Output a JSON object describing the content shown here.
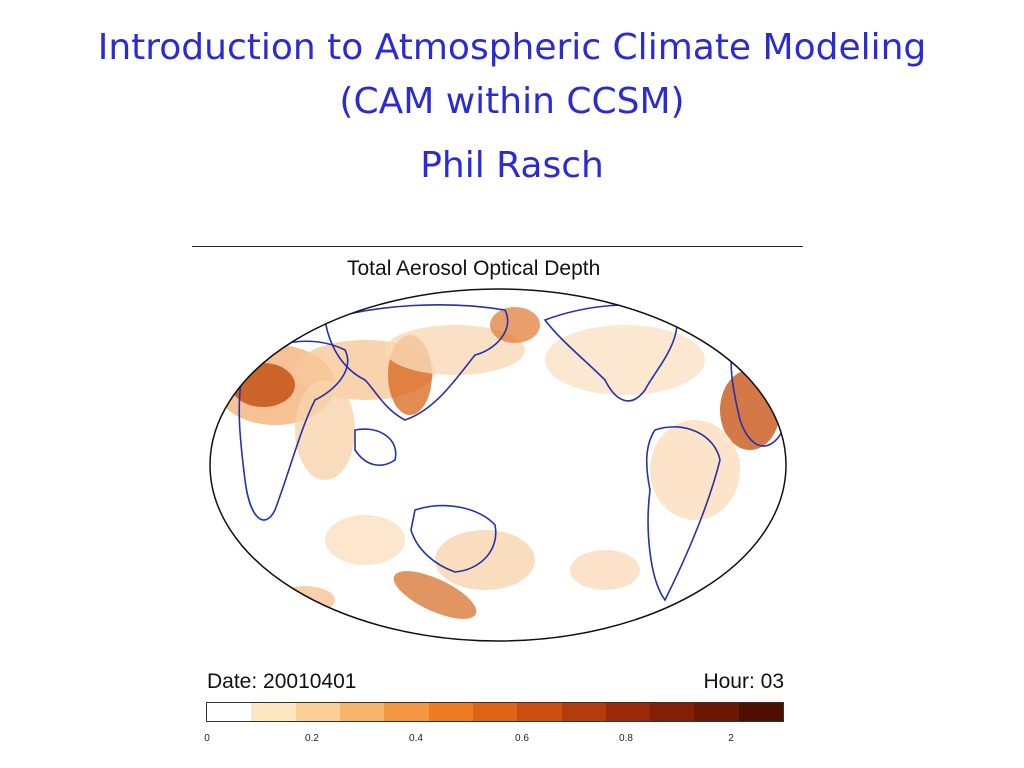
{
  "slide": {
    "title_line1": "Introduction to Atmospheric Climate Modeling",
    "title_line2": "(CAM within CCSM)",
    "author": "Phil Rasch"
  },
  "figure": {
    "title": "Total Aerosol Optical Depth",
    "date_label": "Date: 20010401",
    "hour_label": "Hour: 03",
    "colorbar_ticks": [
      "0",
      "0.2",
      "0.4",
      "0.6",
      "0.8",
      "2"
    ],
    "colorbar_colors": [
      "#ffffff",
      "#fde6c2",
      "#fbd096",
      "#f8b46a",
      "#f49742",
      "#ee7a22",
      "#e06416",
      "#cb4f10",
      "#b33b0c",
      "#9a2a08",
      "#812006",
      "#6a1704",
      "#4e0e02"
    ],
    "colors": {
      "title_text": "#2b2bd6",
      "coastline": "#2433a8"
    }
  }
}
